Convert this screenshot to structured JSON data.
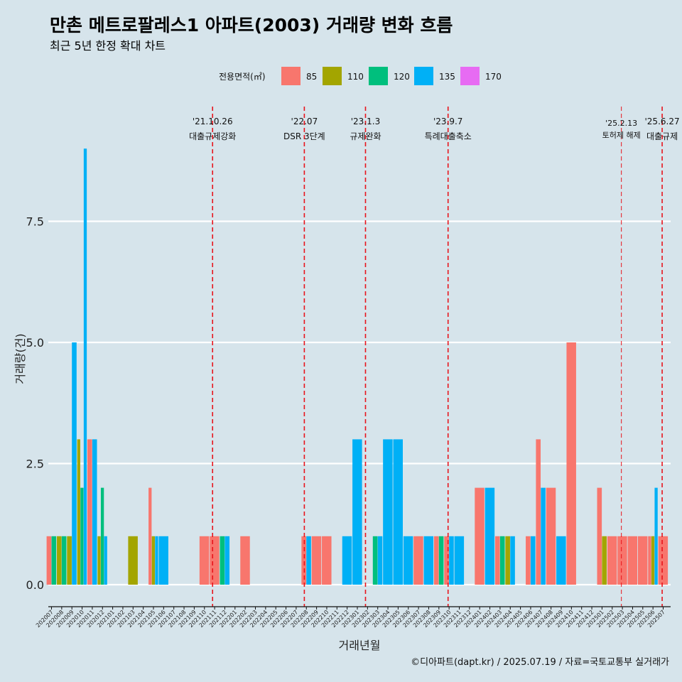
{
  "chart_data": {
    "type": "bar",
    "title": "만촌 메트로팔레스1 아파트(2003) 거래량 변화 흐름",
    "subtitle": "최근 5년 한정 확대 차트",
    "xlabel": "거래년월",
    "ylabel": "거래량(건)",
    "ylim": [
      -0.3,
      9.5
    ],
    "yticks": [
      "0.0",
      "2.5",
      "5.0",
      "7.5"
    ],
    "ytick_values": [
      0,
      2.5,
      5,
      7.5
    ],
    "caption": "©디아파트(dapt.kr) / 2025.07.19 / 자료=국토교통부 실거래가",
    "legend": {
      "title": "전용면적(㎡)",
      "entries": [
        {
          "name": "85",
          "color": "#f8766d"
        },
        {
          "name": "110",
          "color": "#a3a500"
        },
        {
          "name": "120",
          "color": "#00bf7d"
        },
        {
          "name": "135",
          "color": "#00b0f6"
        },
        {
          "name": "170",
          "color": "#e76bf3"
        }
      ]
    },
    "categories": [
      "202007",
      "202008",
      "202009",
      "202010",
      "202011",
      "202012",
      "202101",
      "202102",
      "202103",
      "202104",
      "202105",
      "202106",
      "202107",
      "202108",
      "202109",
      "202110",
      "202111",
      "202112",
      "202201",
      "202202",
      "202203",
      "202204",
      "202205",
      "202206",
      "202207",
      "202208",
      "202209",
      "202210",
      "202211",
      "202212",
      "202301",
      "202302",
      "202303",
      "202304",
      "202305",
      "202306",
      "202307",
      "202308",
      "202309",
      "202310",
      "202311",
      "202312",
      "202401",
      "202402",
      "202403",
      "202404",
      "202405",
      "202406",
      "202407",
      "202408",
      "202409",
      "202410",
      "202411",
      "202412",
      "202501",
      "202502",
      "202503",
      "202504",
      "202505",
      "202506",
      "202507"
    ],
    "series": [
      {
        "name": "85",
        "values": [
          1,
          0,
          0,
          0,
          3,
          0,
          0,
          0,
          0,
          0,
          2,
          0,
          0,
          0,
          0,
          1,
          1,
          0,
          0,
          1,
          0,
          0,
          0,
          0,
          0,
          1,
          1,
          1,
          0,
          0,
          0,
          0,
          0,
          0,
          0,
          0,
          1,
          0,
          1,
          1,
          0,
          0,
          2,
          0,
          1,
          0,
          0,
          1,
          3,
          2,
          0,
          5,
          0,
          0,
          2,
          1,
          1,
          1,
          1,
          1,
          1
        ]
      },
      {
        "name": "110",
        "values": [
          0,
          1,
          1,
          3,
          0,
          1,
          0,
          0,
          1,
          0,
          1,
          0,
          0,
          0,
          0,
          0,
          0,
          0,
          0,
          0,
          0,
          0,
          0,
          0,
          0,
          0,
          0,
          0,
          0,
          0,
          0,
          0,
          0,
          0,
          0,
          0,
          0,
          0,
          0,
          0,
          0,
          0,
          0,
          0,
          0,
          1,
          0,
          0,
          0,
          0,
          0,
          0,
          0,
          0,
          1,
          0,
          0,
          0,
          0,
          1,
          0
        ]
      },
      {
        "name": "120",
        "values": [
          1,
          1,
          0,
          2,
          0,
          2,
          0,
          0,
          0,
          0,
          0,
          0,
          0,
          0,
          0,
          0,
          0,
          1,
          0,
          0,
          0,
          0,
          0,
          0,
          0,
          0,
          0,
          0,
          0,
          0,
          0,
          0,
          1,
          0,
          0,
          0,
          0,
          0,
          1,
          0,
          0,
          0,
          0,
          0,
          1,
          0,
          0,
          0,
          0,
          0,
          0,
          0,
          0,
          0,
          0,
          0,
          0,
          0,
          0,
          0,
          0
        ]
      },
      {
        "name": "135",
        "values": [
          0,
          0,
          5,
          9,
          3,
          1,
          0,
          0,
          0,
          0,
          1,
          1,
          0,
          0,
          0,
          0,
          0,
          1,
          0,
          0,
          0,
          0,
          0,
          0,
          0,
          1,
          0,
          0,
          0,
          1,
          3,
          0,
          1,
          3,
          3,
          1,
          0,
          1,
          0,
          1,
          1,
          0,
          0,
          2,
          0,
          1,
          0,
          1,
          2,
          0,
          1,
          0,
          0,
          0,
          0,
          0,
          0,
          0,
          0,
          2,
          0
        ]
      },
      {
        "name": "170",
        "values": [
          0,
          0,
          0,
          0,
          0,
          0,
          0,
          0,
          0,
          0,
          0,
          0,
          0,
          0,
          0,
          0,
          0,
          0,
          0,
          0,
          0,
          0,
          0,
          0,
          0,
          0,
          0,
          0,
          0,
          0,
          0,
          0,
          0,
          0,
          0,
          0,
          0,
          0,
          0,
          0,
          0,
          0,
          0,
          0,
          0,
          0,
          0,
          0,
          0,
          0,
          0,
          0,
          0,
          0,
          0,
          0,
          0,
          0,
          0,
          0,
          0
        ]
      }
    ],
    "events": [
      {
        "date_label": "'21.10.26",
        "text": "대출규제강화",
        "month_index": 15.8
      },
      {
        "date_label": "'22.07",
        "text": "DSR 3단계",
        "month_index": 24.8
      },
      {
        "date_label": "'23.1.3",
        "text": "규제완화",
        "month_index": 30.8
      },
      {
        "date_label": "'23.9.7",
        "text": "특례대출축소",
        "month_index": 38.9
      },
      {
        "date_label": "'25.2.13",
        "text": "토허제 해제",
        "month_index": 55.9,
        "small": true
      },
      {
        "date_label": "'25.6.27",
        "text": "대출규제",
        "month_index": 59.9
      }
    ]
  }
}
